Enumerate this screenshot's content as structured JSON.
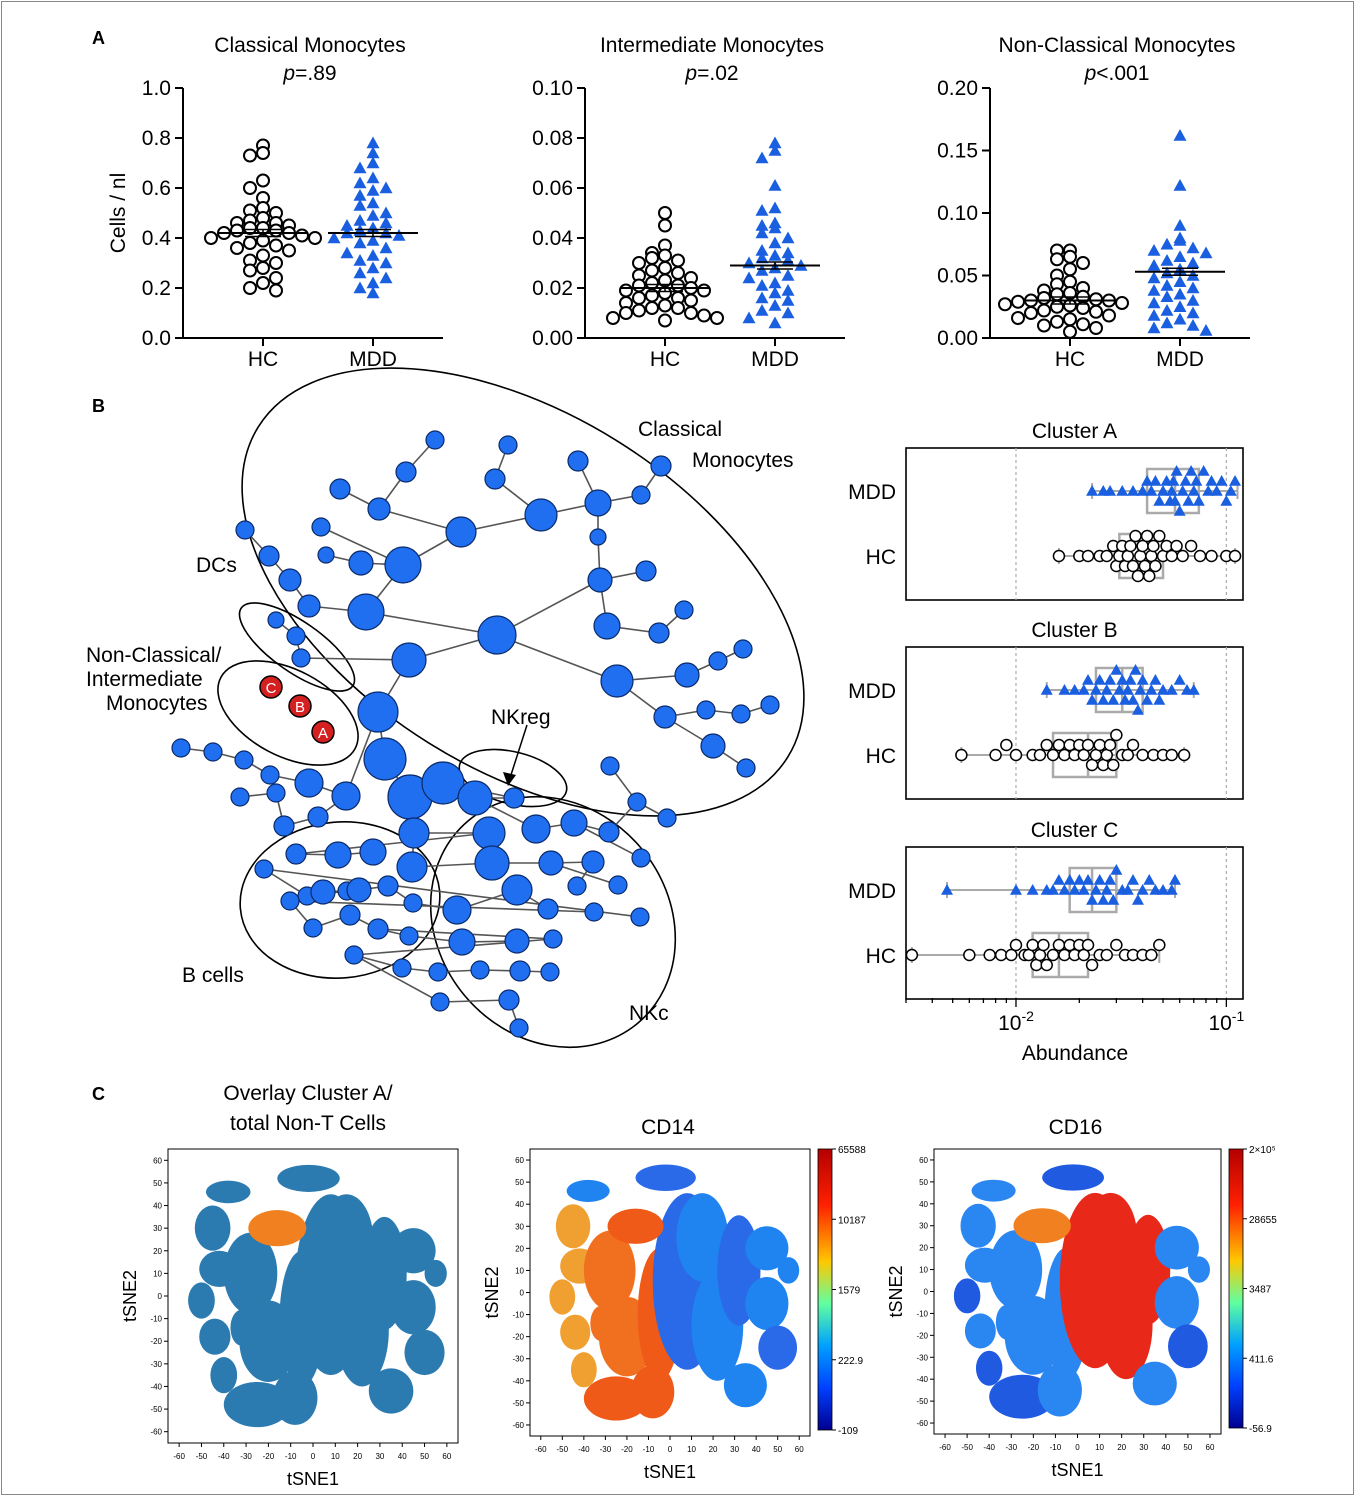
{
  "panel_labels": [
    "A",
    "B",
    "C"
  ],
  "colors": {
    "hc": "#000000",
    "mdd": "#1a5fe0",
    "node": "#1f6ff0",
    "cluster_highlight": "#d42020",
    "tsne_base": "#2b7bb0",
    "tsne_overlay": "#f08020"
  },
  "chart_data": [
    {
      "type": "scatter",
      "title": "Classical Monocytes",
      "subtitle": "p=.89",
      "ylabel": "Cells / nl",
      "categories": [
        "HC",
        "MDD"
      ],
      "ylim": [
        0,
        1.0
      ],
      "yticks": [
        "0.0",
        "0.2",
        "0.4",
        "0.6",
        "0.8",
        "1.0"
      ],
      "series": [
        {
          "name": "HC",
          "marker": "circle",
          "mean": 0.42,
          "values": [
            0.77,
            0.74,
            0.73,
            0.63,
            0.6,
            0.56,
            0.52,
            0.51,
            0.5,
            0.48,
            0.47,
            0.46,
            0.46,
            0.45,
            0.44,
            0.44,
            0.43,
            0.43,
            0.42,
            0.42,
            0.41,
            0.4,
            0.4,
            0.39,
            0.38,
            0.37,
            0.36,
            0.35,
            0.33,
            0.31,
            0.3,
            0.28,
            0.27,
            0.24,
            0.22,
            0.2,
            0.19
          ]
        },
        {
          "name": "MDD",
          "marker": "triangle",
          "mean": 0.42,
          "values": [
            0.78,
            0.74,
            0.7,
            0.68,
            0.64,
            0.62,
            0.6,
            0.59,
            0.57,
            0.54,
            0.53,
            0.5,
            0.49,
            0.47,
            0.46,
            0.45,
            0.44,
            0.43,
            0.42,
            0.42,
            0.41,
            0.4,
            0.39,
            0.38,
            0.36,
            0.34,
            0.33,
            0.31,
            0.3,
            0.28,
            0.26,
            0.24,
            0.22,
            0.2,
            0.18
          ]
        }
      ]
    },
    {
      "type": "scatter",
      "title": "Intermediate Monocytes",
      "subtitle": "p=.02",
      "ylabel": "",
      "categories": [
        "HC",
        "MDD"
      ],
      "ylim": [
        0,
        0.1
      ],
      "yticks": [
        "0.00",
        "0.02",
        "0.04",
        "0.06",
        "0.08",
        "0.10"
      ],
      "series": [
        {
          "name": "HC",
          "marker": "circle",
          "mean": 0.02,
          "values": [
            0.05,
            0.045,
            0.037,
            0.034,
            0.033,
            0.032,
            0.031,
            0.03,
            0.028,
            0.027,
            0.026,
            0.025,
            0.024,
            0.023,
            0.022,
            0.021,
            0.021,
            0.02,
            0.019,
            0.019,
            0.018,
            0.017,
            0.016,
            0.016,
            0.015,
            0.014,
            0.013,
            0.012,
            0.012,
            0.011,
            0.01,
            0.01,
            0.009,
            0.008,
            0.008,
            0.007
          ]
        },
        {
          "name": "MDD",
          "marker": "triangle",
          "mean": 0.029,
          "values": [
            0.078,
            0.075,
            0.072,
            0.061,
            0.052,
            0.051,
            0.046,
            0.045,
            0.044,
            0.042,
            0.04,
            0.038,
            0.035,
            0.034,
            0.033,
            0.032,
            0.031,
            0.03,
            0.029,
            0.028,
            0.027,
            0.025,
            0.024,
            0.022,
            0.021,
            0.019,
            0.018,
            0.016,
            0.015,
            0.013,
            0.011,
            0.01,
            0.008,
            0.006
          ]
        }
      ]
    },
    {
      "type": "scatter",
      "title": "Non-Classical Monocytes",
      "subtitle": "p<.001",
      "ylabel": "",
      "categories": [
        "HC",
        "MDD"
      ],
      "ylim": [
        0,
        0.2
      ],
      "yticks": [
        "0.00",
        "0.05",
        "0.10",
        "0.15",
        "0.20"
      ],
      "series": [
        {
          "name": "HC",
          "marker": "circle",
          "mean": 0.03,
          "values": [
            0.07,
            0.07,
            0.065,
            0.063,
            0.06,
            0.055,
            0.05,
            0.045,
            0.043,
            0.04,
            0.038,
            0.036,
            0.035,
            0.033,
            0.032,
            0.031,
            0.03,
            0.03,
            0.029,
            0.028,
            0.027,
            0.026,
            0.025,
            0.024,
            0.022,
            0.021,
            0.02,
            0.018,
            0.016,
            0.015,
            0.013,
            0.011,
            0.01,
            0.008,
            0.005
          ]
        },
        {
          "name": "MDD",
          "marker": "triangle",
          "mean": 0.053,
          "values": [
            0.162,
            0.122,
            0.09,
            0.08,
            0.078,
            0.075,
            0.072,
            0.07,
            0.068,
            0.065,
            0.062,
            0.06,
            0.058,
            0.055,
            0.052,
            0.05,
            0.048,
            0.045,
            0.042,
            0.04,
            0.038,
            0.035,
            0.033,
            0.03,
            0.028,
            0.025,
            0.022,
            0.02,
            0.018,
            0.015,
            0.012,
            0.01,
            0.008,
            0.006
          ]
        }
      ]
    },
    {
      "type": "scatter",
      "title": "Cluster A",
      "categories": [
        "MDD",
        "HC"
      ],
      "xscale": "log",
      "xlim": [
        0.003,
        0.12
      ],
      "series": [
        {
          "name": "MDD",
          "marker": "triangle",
          "box": [
            0.023,
            0.042,
            0.057,
            0.074,
            0.113
          ],
          "values": [
            0.023,
            0.026,
            0.028,
            0.032,
            0.036,
            0.04,
            0.042,
            0.044,
            0.046,
            0.048,
            0.05,
            0.052,
            0.054,
            0.055,
            0.056,
            0.057,
            0.058,
            0.06,
            0.062,
            0.064,
            0.066,
            0.068,
            0.07,
            0.072,
            0.074,
            0.078,
            0.082,
            0.085,
            0.09,
            0.095,
            0.1,
            0.105,
            0.11
          ]
        },
        {
          "name": "HC",
          "marker": "circle",
          "box": [
            0.016,
            0.031,
            0.038,
            0.05,
            0.11
          ],
          "values": [
            0.016,
            0.02,
            0.022,
            0.025,
            0.027,
            0.029,
            0.03,
            0.031,
            0.032,
            0.033,
            0.034,
            0.035,
            0.036,
            0.037,
            0.038,
            0.039,
            0.04,
            0.041,
            0.042,
            0.043,
            0.044,
            0.045,
            0.046,
            0.048,
            0.05,
            0.052,
            0.055,
            0.058,
            0.062,
            0.068,
            0.075,
            0.085,
            0.1,
            0.11
          ]
        }
      ]
    },
    {
      "type": "scatter",
      "title": "Cluster B",
      "categories": [
        "MDD",
        "HC"
      ],
      "xscale": "log",
      "xlim": [
        0.003,
        0.12
      ],
      "series": [
        {
          "name": "MDD",
          "marker": "triangle",
          "box": [
            0.014,
            0.024,
            0.032,
            0.04,
            0.07
          ],
          "values": [
            0.014,
            0.017,
            0.019,
            0.021,
            0.022,
            0.023,
            0.024,
            0.025,
            0.026,
            0.027,
            0.028,
            0.029,
            0.03,
            0.031,
            0.032,
            0.033,
            0.034,
            0.035,
            0.036,
            0.037,
            0.038,
            0.039,
            0.04,
            0.042,
            0.044,
            0.046,
            0.048,
            0.05,
            0.055,
            0.06,
            0.065,
            0.07
          ]
        },
        {
          "name": "HC",
          "marker": "circle",
          "box": [
            0.0055,
            0.015,
            0.022,
            0.03,
            0.063
          ],
          "values": [
            0.0055,
            0.008,
            0.009,
            0.01,
            0.012,
            0.013,
            0.014,
            0.015,
            0.016,
            0.017,
            0.018,
            0.019,
            0.02,
            0.021,
            0.022,
            0.023,
            0.024,
            0.025,
            0.026,
            0.027,
            0.028,
            0.029,
            0.03,
            0.032,
            0.034,
            0.036,
            0.04,
            0.045,
            0.05,
            0.055,
            0.063
          ]
        }
      ]
    },
    {
      "type": "scatter",
      "title": "Cluster C",
      "categories": [
        "MDD",
        "HC"
      ],
      "xscale": "log",
      "xlim": [
        0.003,
        0.12
      ],
      "xlabel": "Abundance",
      "xticks": [
        "10-2",
        "10-1"
      ],
      "series": [
        {
          "name": "MDD",
          "marker": "triangle",
          "box": [
            0.0047,
            0.018,
            0.023,
            0.03,
            0.057
          ],
          "values": [
            0.0047,
            0.01,
            0.012,
            0.014,
            0.015,
            0.016,
            0.017,
            0.018,
            0.019,
            0.02,
            0.021,
            0.022,
            0.023,
            0.024,
            0.025,
            0.026,
            0.027,
            0.028,
            0.029,
            0.03,
            0.032,
            0.034,
            0.036,
            0.038,
            0.04,
            0.043,
            0.046,
            0.05,
            0.055,
            0.057
          ]
        },
        {
          "name": "HC",
          "marker": "circle",
          "box": [
            0.0032,
            0.012,
            0.016,
            0.022,
            0.048
          ],
          "values": [
            0.0032,
            0.006,
            0.0075,
            0.0085,
            0.0095,
            0.01,
            0.011,
            0.0115,
            0.012,
            0.0125,
            0.013,
            0.0135,
            0.014,
            0.015,
            0.016,
            0.017,
            0.018,
            0.019,
            0.02,
            0.021,
            0.022,
            0.023,
            0.025,
            0.027,
            0.03,
            0.033,
            0.036,
            0.04,
            0.044,
            0.048
          ]
        }
      ]
    },
    {
      "type": "scatter",
      "title": "Overlay Cluster A/ total Non-T Cells",
      "xlabel": "tSNE1",
      "ylabel": "tSNE2",
      "xlim": [
        -65,
        65
      ],
      "ylim": [
        -65,
        65
      ],
      "ticks": [
        "-60",
        "-50",
        "-40",
        "-30",
        "-20",
        "-10",
        "0",
        "10",
        "20",
        "30",
        "40",
        "50",
        "60"
      ]
    },
    {
      "type": "scatter",
      "title": "CD14",
      "xlabel": "tSNE1",
      "ylabel": "tSNE2",
      "xlim": [
        -65,
        65
      ],
      "ylim": [
        -65,
        65
      ],
      "ticks": [
        "-60",
        "-50",
        "-40",
        "-30",
        "-20",
        "-10",
        "0",
        "10",
        "20",
        "30",
        "40",
        "50",
        "60"
      ],
      "colorbar": [
        "65588",
        "10187",
        "1579",
        "222.9",
        "-109"
      ]
    },
    {
      "type": "scatter",
      "title": "CD16",
      "xlabel": "tSNE1",
      "ylabel": "tSNE2",
      "xlim": [
        -65,
        65
      ],
      "ylim": [
        -65,
        65
      ],
      "ticks": [
        "-60",
        "-50",
        "-40",
        "-30",
        "-20",
        "-10",
        "0",
        "10",
        "20",
        "30",
        "40",
        "50",
        "60"
      ],
      "colorbar": [
        "2×10⁵",
        "28655",
        "3487",
        "411.6",
        "-56.9"
      ]
    }
  ],
  "tree": {
    "group_labels": [
      "Classical",
      "Monocytes",
      "DCs",
      "Non-Classical/",
      "Intermediate",
      "Monocytes",
      "NKreg",
      "B cells",
      "NKc"
    ],
    "highlight_nodes": [
      "C",
      "B",
      "A"
    ]
  }
}
